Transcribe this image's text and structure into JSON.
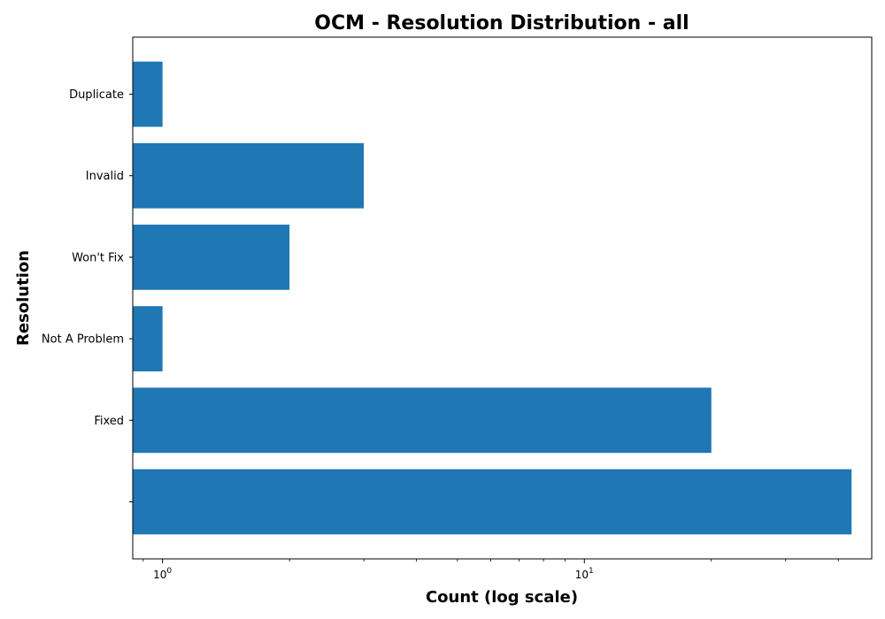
{
  "chart_data": {
    "type": "bar",
    "orientation": "horizontal",
    "title": "OCM - Resolution Distribution - all",
    "xlabel": "Count (log scale)",
    "ylabel": "Resolution",
    "x_scale": "log",
    "xlim": [
      0.85,
      48
    ],
    "x_ticks": [
      {
        "value": 1,
        "base": "10",
        "exp": "0"
      },
      {
        "value": 10,
        "base": "10",
        "exp": "1"
      }
    ],
    "categories": [
      "",
      "Fixed",
      "Not A Problem",
      "Won't Fix",
      "Invalid",
      "Duplicate"
    ],
    "values": [
      43,
      20,
      1,
      2,
      3,
      1
    ],
    "bar_color": "#1f77b4",
    "grid": false
  }
}
